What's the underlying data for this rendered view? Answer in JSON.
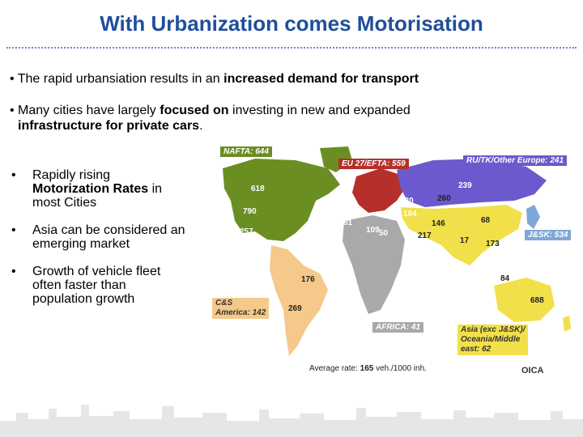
{
  "slide": {
    "title": "With Urbanization comes Motorisation",
    "bullets_top": [
      {
        "pre": "• The rapid urbansiation results in an ",
        "bold": "increased demand for transport",
        "post": ""
      },
      {
        "pre": "• Many cities have largely ",
        "bold": "focused on",
        "post": " investing in new and expanded",
        "line2_bold": "infrastructure for private cars",
        "line2_post": "."
      }
    ],
    "bullets_left": [
      {
        "line1": "Rapidly rising",
        "bold": "Motorization Rates",
        "rest": " in",
        "line3": "most Cities"
      },
      {
        "line1": "Asia can be considered an",
        "line2": "emerging market"
      },
      {
        "line1": "Growth of vehicle fleet",
        "line2": "often faster than",
        "line3": "population growth"
      }
    ],
    "bullet_glyph": "•"
  },
  "map": {
    "region_labels": {
      "nafta": "NAFTA: 644",
      "eu": "EU 27/EFTA: 559",
      "ru": "RU/TK/Other Europe: 241",
      "jsk": "J&SK: 534",
      "cs1": "C&S",
      "cs2": "America: 142",
      "africa": "AFRICA: 41",
      "asia1": "Asia (exc J&SK)/",
      "asia2": "Oceania/Middle",
      "asia3": "east: 62"
    },
    "values": {
      "v618": "618",
      "v790": "790",
      "v257": "257",
      "v176": "176",
      "v269": "269",
      "v81": "81",
      "v109": "109",
      "v50": "50",
      "v169": "169",
      "v180": "180",
      "v184": "184",
      "v260": "260",
      "v239": "239",
      "v146": "146",
      "v68": "68",
      "v217": "217",
      "v17": "17",
      "v173": "173",
      "v84": "84",
      "v688": "688"
    },
    "colors": {
      "nafta": "#6b8e23",
      "eu": "#b5302a",
      "ru": "#6a5acd",
      "asia": "#f2e04a",
      "cs": "#f5c98a",
      "africa": "#a9a9a9",
      "jsk": "#7fa8d8"
    },
    "average_prefix": "Average rate: ",
    "average_bold": "165",
    "average_suffix": " veh./1000 inh.",
    "source": "OICA"
  }
}
